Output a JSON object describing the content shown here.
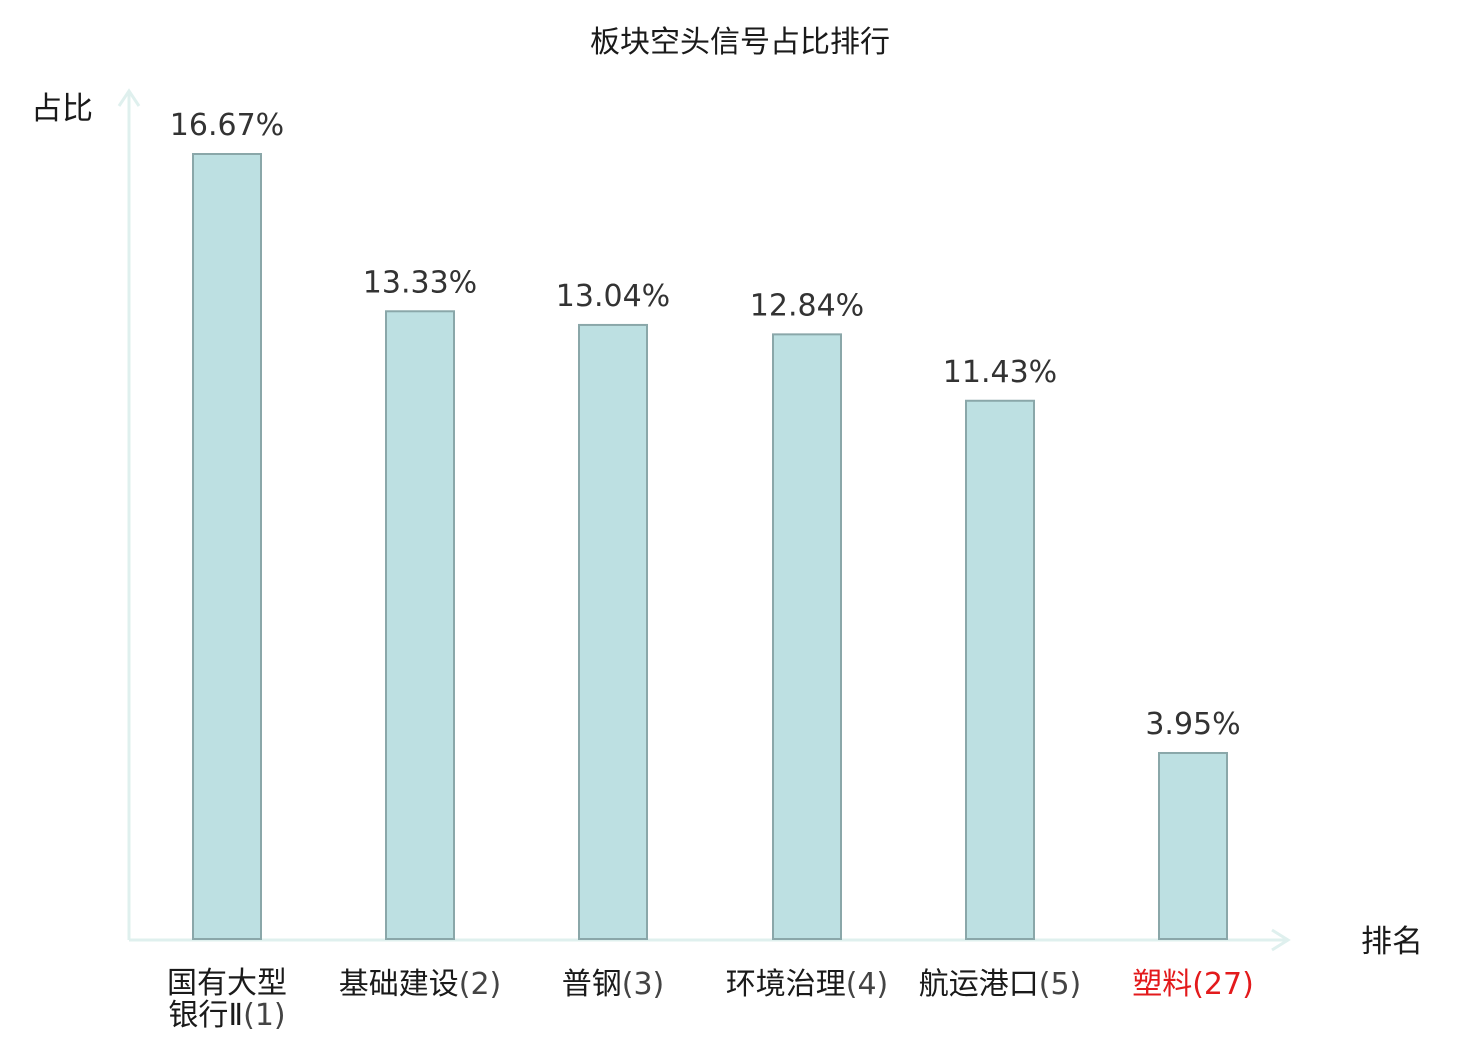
{
  "chart_data": {
    "type": "bar",
    "title": "板块空头信号占比排行",
    "ylabel": "占比",
    "xlabel": "排名",
    "ylim": [
      0,
      20
    ],
    "grid": false,
    "legend": "none",
    "categories": [
      {
        "lines": [
          {
            "name": "国有大型",
            "rank": ""
          },
          {
            "name": "银行Ⅱ",
            "rank": "(1)"
          }
        ],
        "highlight": false
      },
      {
        "lines": [
          {
            "name": "基础建设",
            "rank": "(2)"
          }
        ],
        "highlight": false
      },
      {
        "lines": [
          {
            "name": "普钢",
            "rank": "(3)"
          }
        ],
        "highlight": false
      },
      {
        "lines": [
          {
            "name": "环境治理",
            "rank": "(4)"
          }
        ],
        "highlight": false
      },
      {
        "lines": [
          {
            "name": "航运港口",
            "rank": "(5)"
          }
        ],
        "highlight": false
      },
      {
        "lines": [
          {
            "name": "塑料",
            "rank": "(27)"
          }
        ],
        "highlight": true
      }
    ],
    "values": [
      16.67,
      13.33,
      13.04,
      12.84,
      11.43,
      3.95
    ],
    "value_labels": [
      "16.67%",
      "13.33%",
      "13.04%",
      "12.84%",
      "11.43%",
      "3.95%"
    ],
    "colors": {
      "bar_fill": "#bde0e2",
      "bar_stroke": "#8aa7a9",
      "axis": "#dff0ee",
      "highlight": "#e31a1c"
    }
  }
}
